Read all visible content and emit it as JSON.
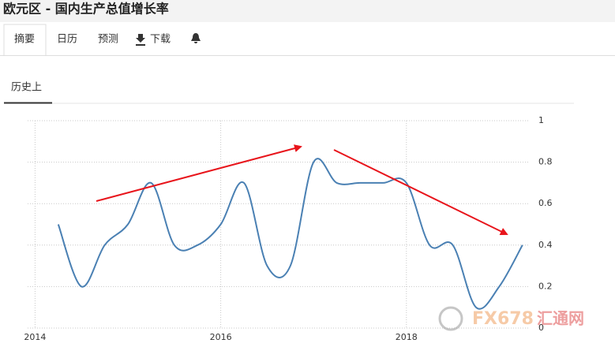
{
  "header": {
    "title": "欧元区 - 国内生产总值增长率"
  },
  "tabs": [
    "摘要",
    "日历",
    "预测",
    "下载"
  ],
  "subtab": "历史上",
  "watermark": {
    "brand": "FX678",
    "name": "汇通网"
  },
  "chart_data": {
    "type": "line",
    "x": [
      2014.25,
      2014.5,
      2014.75,
      2015,
      2015.25,
      2015.5,
      2015.75,
      2016,
      2016.25,
      2016.5,
      2016.75,
      2017,
      2017.25,
      2017.5,
      2017.75,
      2018,
      2018.25,
      2018.5,
      2018.75,
      2019,
      2019.25
    ],
    "series": [
      {
        "color": "#4a80b3",
        "values": [
          0.5,
          0.2,
          0.4,
          0.5,
          0.7,
          0.4,
          0.4,
          0.5,
          0.7,
          0.3,
          0.3,
          0.8,
          0.7,
          0.7,
          0.7,
          0.7,
          0.4,
          0.4,
          0.1,
          0.2,
          0.4
        ]
      }
    ],
    "xlim": [
      2013.92,
      2019.32
    ],
    "xticks": [
      2014,
      2016,
      2018
    ],
    "ylim": [
      0,
      1
    ],
    "yticks": [
      0,
      0.2,
      0.4,
      0.6,
      0.8,
      1
    ],
    "grid": true,
    "smooth": true
  }
}
